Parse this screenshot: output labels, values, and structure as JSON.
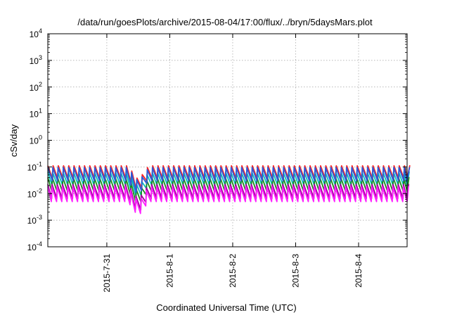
{
  "chart_data": {
    "type": "line",
    "title": "/data/run/goesPlots/archive/2015-08-04/17:00/flux/../bryn/5daysMars.plot",
    "xlabel": "Coordinated Universal Time (UTC)",
    "ylabel": "cSv/day",
    "y_scale": "log",
    "ylim": [
      0.0001,
      10000
    ],
    "xlim": [
      "2015-07-30T01:30",
      "2015-08-04T18:30"
    ],
    "grid": true,
    "y_ticks": [
      {
        "value": 0.0001,
        "base": "10",
        "exp": "-4"
      },
      {
        "value": 0.001,
        "base": "10",
        "exp": "-3"
      },
      {
        "value": 0.01,
        "base": "10",
        "exp": "-2"
      },
      {
        "value": 0.1,
        "base": "10",
        "exp": "-1"
      },
      {
        "value": 1,
        "base": "10",
        "exp": "0"
      },
      {
        "value": 10,
        "base": "10",
        "exp": "1"
      },
      {
        "value": 100,
        "base": "10",
        "exp": "2"
      },
      {
        "value": 1000,
        "base": "10",
        "exp": "3"
      },
      {
        "value": 10000,
        "base": "10",
        "exp": "4"
      }
    ],
    "x_ticks": [
      {
        "value": "2015-07-31T00:00",
        "label": "2015-7-31"
      },
      {
        "value": "2015-08-01T00:00",
        "label": "2015-8-1"
      },
      {
        "value": "2015-08-02T00:00",
        "label": "2015-8-2"
      },
      {
        "value": "2015-08-03T00:00",
        "label": "2015-8-3"
      },
      {
        "value": "2015-08-04T00:00",
        "label": "2015-8-4"
      }
    ],
    "sawtooth_period_hours": 2,
    "dip": {
      "time": "2015-07-31T12:00",
      "min_value": 0.0013
    },
    "series": [
      {
        "color": "#ff2222",
        "peak": 0.11,
        "trough": 0.035
      },
      {
        "color": "#2f59d6",
        "peak": 0.095,
        "trough": 0.03
      },
      {
        "color": "#00c0c0",
        "peak": 0.065,
        "trough": 0.02
      },
      {
        "color": "#1b8a1b",
        "peak": 0.04,
        "trough": 0.012
      },
      {
        "color": "#a0009a",
        "peak": 0.022,
        "trough": 0.0065
      },
      {
        "color": "#ff20ff",
        "peak": 0.018,
        "trough": 0.005
      }
    ]
  }
}
